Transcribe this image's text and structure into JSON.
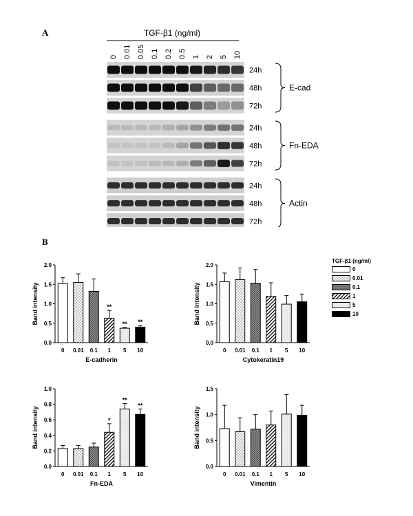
{
  "panel_a": {
    "letter": "A",
    "treatment_label": "TGF-β1 (ng/ml)",
    "lanes": [
      "0",
      "0.01",
      "0.05",
      "0.1",
      "0.2",
      "0.5",
      "1",
      "2",
      "5",
      "10"
    ],
    "blot_groups": [
      {
        "name": "E-cad",
        "times": [
          "24h",
          "48h",
          "72h"
        ],
        "relative_intensity": [
          [
            1,
            1,
            1,
            1,
            1,
            1,
            0.95,
            0.9,
            0.85,
            0.8
          ],
          [
            1,
            1,
            1,
            1,
            1,
            1,
            0.75,
            0.6,
            0.55,
            0.55
          ],
          [
            1,
            1,
            1,
            1,
            1,
            0.95,
            0.6,
            0.45,
            0.3,
            0.35
          ]
        ]
      },
      {
        "name": "Fn-EDA",
        "times": [
          "24h",
          "48h",
          "72h"
        ],
        "relative_intensity": [
          [
            0.15,
            0.15,
            0.15,
            0.15,
            0.2,
            0.25,
            0.35,
            0.45,
            0.5,
            0.5
          ],
          [
            0.1,
            0.1,
            0.1,
            0.1,
            0.15,
            0.25,
            0.5,
            0.65,
            0.85,
            0.8
          ],
          [
            0.1,
            0.1,
            0.1,
            0.15,
            0.15,
            0.2,
            0.45,
            0.6,
            0.95,
            0.75
          ]
        ]
      },
      {
        "name": "Actin",
        "times": [
          "24h",
          "48h",
          "72h"
        ],
        "relative_intensity": [
          [
            0.85,
            0.85,
            0.85,
            0.85,
            0.85,
            0.85,
            0.85,
            0.85,
            0.85,
            0.85
          ],
          [
            0.85,
            0.85,
            0.85,
            0.85,
            0.85,
            0.85,
            0.85,
            0.85,
            0.85,
            0.85
          ],
          [
            0.85,
            0.85,
            0.85,
            0.85,
            0.85,
            0.85,
            0.85,
            0.85,
            0.85,
            0.85
          ]
        ]
      }
    ]
  },
  "panel_b": {
    "letter": "B"
  },
  "legend": {
    "title": "TGF-β1 (ng/ml)",
    "items": [
      {
        "label": "0",
        "pattern": "white"
      },
      {
        "label": "0.01",
        "pattern": "dots"
      },
      {
        "label": "0.1",
        "pattern": "crosshatch"
      },
      {
        "label": "1",
        "pattern": "diagonal"
      },
      {
        "label": "5",
        "pattern": "lightgray"
      },
      {
        "label": "10",
        "pattern": "black"
      }
    ]
  },
  "chart_data": [
    {
      "type": "bar",
      "title": "",
      "xlabel": "E-cadherin",
      "ylabel": "Band intensity",
      "categories": [
        "0",
        "0.01",
        "0.1",
        "1",
        "5",
        "10"
      ],
      "values": [
        1.52,
        1.55,
        1.32,
        0.63,
        0.37,
        0.4
      ],
      "errors": [
        0.15,
        0.22,
        0.32,
        0.2,
        0.02,
        0.04
      ],
      "significance": [
        "",
        "",
        "",
        "**",
        "**",
        "**"
      ],
      "ylim": [
        0,
        2.0
      ],
      "yticks": [
        "0.0",
        "0.5",
        "1.0",
        "1.5",
        "2.0"
      ],
      "grid": false
    },
    {
      "type": "bar",
      "title": "",
      "xlabel": "Cytokeratin19",
      "ylabel": "Band intensity",
      "categories": [
        "0",
        "0.01",
        "0.1",
        "1",
        "5",
        "10"
      ],
      "values": [
        1.57,
        1.62,
        1.53,
        1.19,
        0.99,
        1.05
      ],
      "errors": [
        0.22,
        0.3,
        0.35,
        0.35,
        0.22,
        0.2
      ],
      "significance": [
        "",
        "",
        "",
        "",
        "",
        ""
      ],
      "ylim": [
        0,
        2.0
      ],
      "yticks": [
        "0.0",
        "0.5",
        "1.0",
        "1.5",
        "2.0"
      ],
      "grid": false
    },
    {
      "type": "bar",
      "title": "",
      "xlabel": "Fn-EDA",
      "ylabel": "Band intensity",
      "categories": [
        "0",
        "0.01",
        "0.1",
        "1",
        "5",
        "10"
      ],
      "values": [
        0.23,
        0.23,
        0.25,
        0.44,
        0.74,
        0.67
      ],
      "errors": [
        0.04,
        0.04,
        0.05,
        0.11,
        0.07,
        0.07
      ],
      "significance": [
        "",
        "",
        "",
        "*",
        "**",
        "**"
      ],
      "ylim": [
        0,
        1.0
      ],
      "yticks": [
        "0.0",
        "0.2",
        "0.4",
        "0.6",
        "0.8",
        "1.0"
      ],
      "grid": false
    },
    {
      "type": "bar",
      "title": "",
      "xlabel": "Vimentin",
      "ylabel": "Band intensity",
      "categories": [
        "0",
        "0.01",
        "0.1",
        "1",
        "5",
        "10"
      ],
      "values": [
        0.73,
        0.67,
        0.72,
        0.8,
        1.01,
        0.99
      ],
      "errors": [
        0.45,
        0.27,
        0.28,
        0.27,
        0.38,
        0.19
      ],
      "significance": [
        "",
        "",
        "",
        "",
        "",
        ""
      ],
      "ylim": [
        0,
        1.5
      ],
      "yticks": [
        "0.0",
        "0.5",
        "1.0",
        "1.5"
      ],
      "grid": false
    }
  ]
}
